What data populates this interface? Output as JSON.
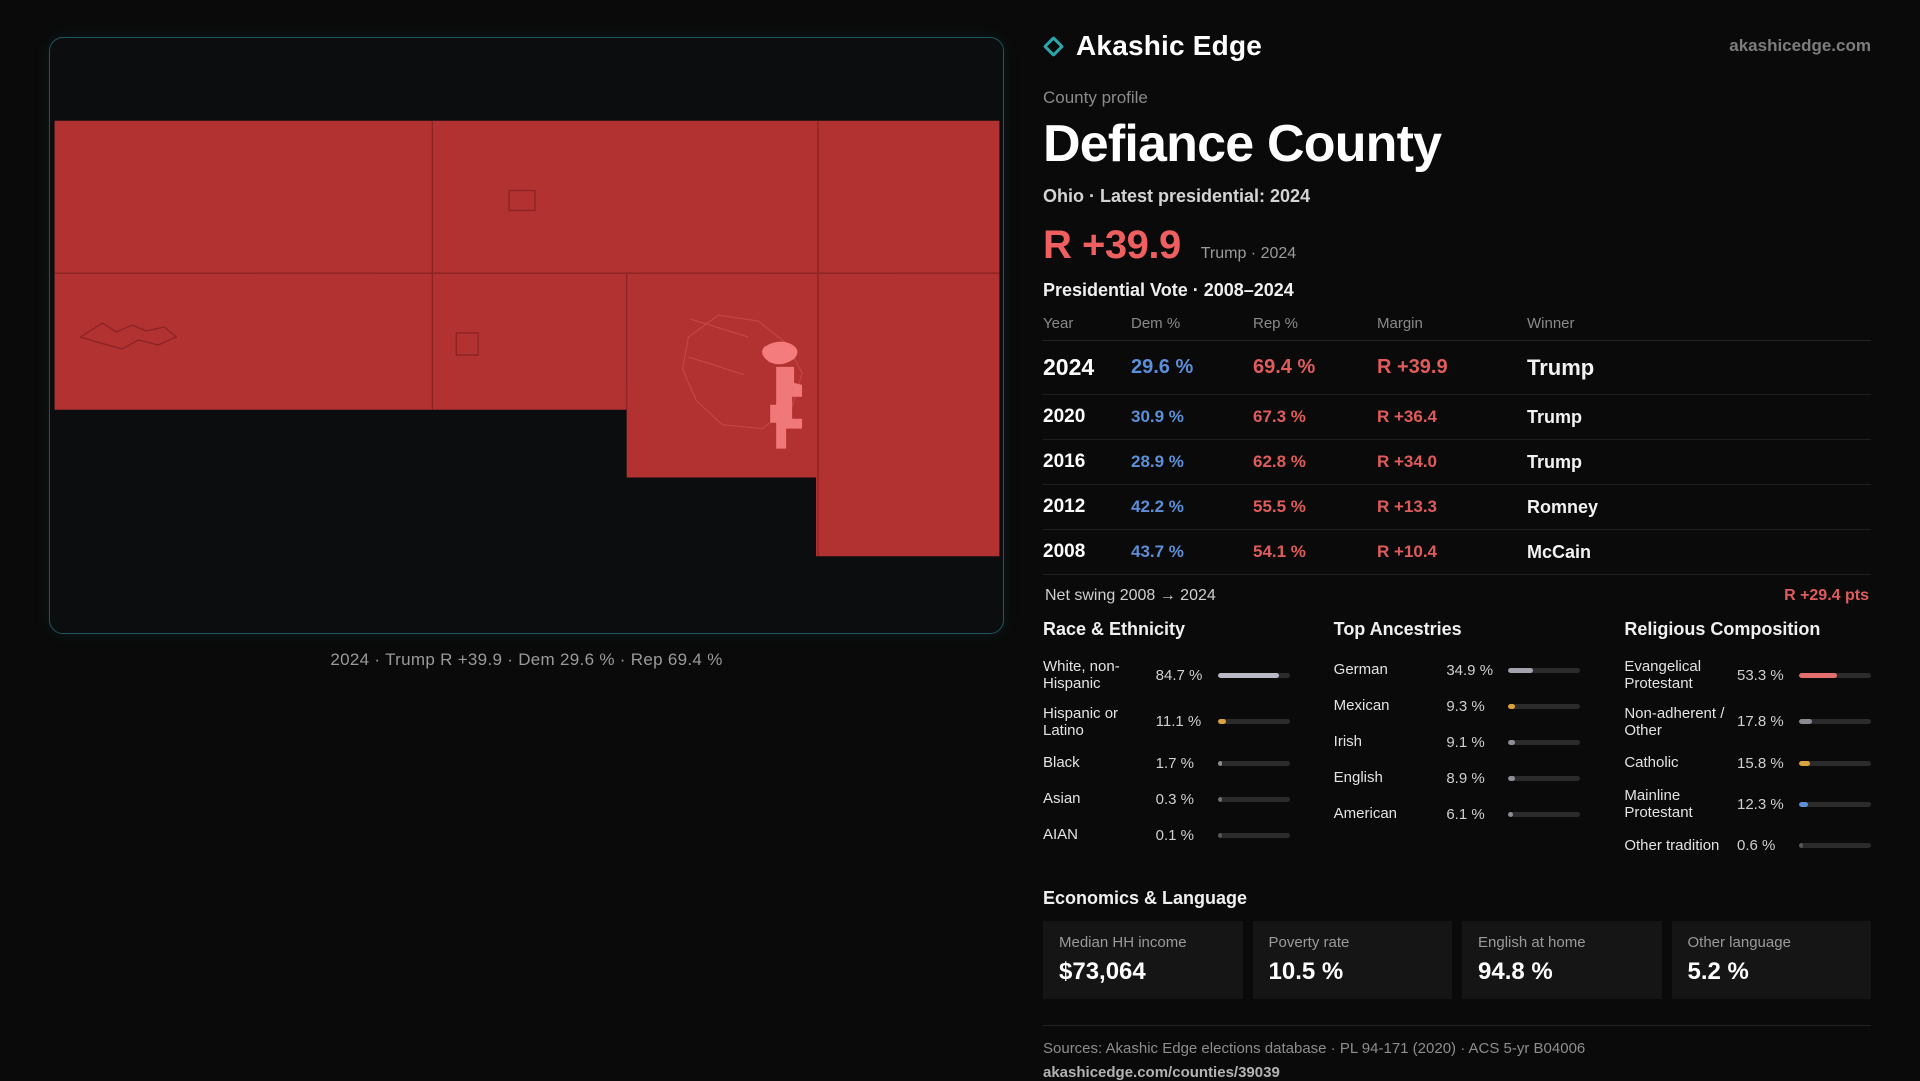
{
  "colors": {
    "teal": "#2aa7ad",
    "accent": "#ef5f5f",
    "dem": "#5b8fd9",
    "rep": "#e05b5b",
    "map-fill": "#b23131",
    "map-highlight": "#f47c7c"
  },
  "brand": {
    "name": "Akashic Edge",
    "domain": "akashicedge.com"
  },
  "profile": {
    "eyebrow": "County profile",
    "title": "Defiance County",
    "subtitle": "Ohio · Latest presidential: 2024",
    "headline_margin": "R +39.9",
    "headline_note": "Trump · 2024"
  },
  "map": {
    "caption": "2024 · Trump  R +39.9 · Dem 29.6 % · Rep 69.4 %"
  },
  "vote_table": {
    "title": "Presidential Vote · 2008–2024",
    "headers": [
      "Year",
      "Dem %",
      "Rep %",
      "Margin",
      "Winner"
    ],
    "rows": [
      {
        "year": "2024",
        "dem": "29.6 %",
        "rep": "69.4 %",
        "margin": "R +39.9",
        "winner": "Trump"
      },
      {
        "year": "2020",
        "dem": "30.9 %",
        "rep": "67.3 %",
        "margin": "R +36.4",
        "winner": "Trump"
      },
      {
        "year": "2016",
        "dem": "28.9 %",
        "rep": "62.8 %",
        "margin": "R +34.0",
        "winner": "Trump"
      },
      {
        "year": "2012",
        "dem": "42.2 %",
        "rep": "55.5 %",
        "margin": "R +13.3",
        "winner": "Romney"
      },
      {
        "year": "2008",
        "dem": "43.7 %",
        "rep": "54.1 %",
        "margin": "R +10.4",
        "winner": "McCain"
      }
    ]
  },
  "swing": {
    "label": "Net swing 2008 → 2024",
    "value": "R +29.4 pts"
  },
  "race": {
    "title": "Race & Ethnicity",
    "rows": [
      {
        "label": "White, non-Hispanic",
        "value": "84.7 %",
        "pct": 84.7,
        "color": "#b9b8c6"
      },
      {
        "label": "Hispanic or Latino",
        "value": "11.1 %",
        "pct": 11.1,
        "color": "#dca33c"
      },
      {
        "label": "Black",
        "value": "1.7 %",
        "pct": 1.7,
        "color": "#8e8e96"
      },
      {
        "label": "Asian",
        "value": "0.3 %",
        "pct": 0.3,
        "color": "#6e6e76"
      },
      {
        "label": "AIAN",
        "value": "0.1 %",
        "pct": 0.1,
        "color": "#55555c"
      }
    ]
  },
  "ancestries": {
    "title": "Top Ancestries",
    "rows": [
      {
        "label": "German",
        "value": "34.9 %",
        "pct": 34.9,
        "color": "#a3a2ae"
      },
      {
        "label": "Mexican",
        "value": "9.3 %",
        "pct": 9.3,
        "color": "#dca33c"
      },
      {
        "label": "Irish",
        "value": "9.1 %",
        "pct": 9.1,
        "color": "#8e8e96"
      },
      {
        "label": "English",
        "value": "8.9 %",
        "pct": 8.9,
        "color": "#8e8e96"
      },
      {
        "label": "American",
        "value": "6.1 %",
        "pct": 6.1,
        "color": "#8e8e96"
      }
    ]
  },
  "religion": {
    "title": "Religious Composition",
    "rows": [
      {
        "label": "Evangelical Protestant",
        "value": "53.3 %",
        "pct": 53.3,
        "color": "#e56e6e"
      },
      {
        "label": "Non-adherent / Other",
        "value": "17.8 %",
        "pct": 17.8,
        "color": "#8a8a95"
      },
      {
        "label": "Catholic",
        "value": "15.8 %",
        "pct": 15.8,
        "color": "#dca33c"
      },
      {
        "label": "Mainline Protestant",
        "value": "12.3 %",
        "pct": 12.3,
        "color": "#5b8fd9"
      },
      {
        "label": "Other tradition",
        "value": "0.6 %",
        "pct": 0.6,
        "color": "#55555c"
      }
    ]
  },
  "economics": {
    "title": "Economics & Language",
    "stats": [
      {
        "label": "Median HH income",
        "value": "$73,064"
      },
      {
        "label": "Poverty rate",
        "value": "10.5 %"
      },
      {
        "label": "English at home",
        "value": "94.8 %"
      },
      {
        "label": "Other language",
        "value": "5.2 %"
      }
    ]
  },
  "footer": {
    "sources": "Sources: Akashic Edge elections database · PL 94-171 (2020) · ACS 5-yr B04006",
    "permalink": "akashicedge.com/counties/39039"
  }
}
